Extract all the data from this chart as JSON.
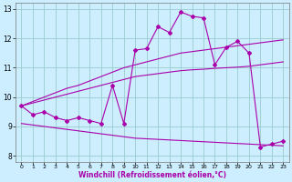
{
  "xlabel": "Windchill (Refroidissement éolien,°C)",
  "xlim": [
    -0.5,
    23.5
  ],
  "ylim": [
    7.8,
    13.2
  ],
  "xticks": [
    0,
    1,
    2,
    3,
    4,
    5,
    6,
    7,
    8,
    9,
    10,
    11,
    12,
    13,
    14,
    15,
    16,
    17,
    18,
    19,
    20,
    21,
    22,
    23
  ],
  "yticks": [
    8,
    9,
    10,
    11,
    12,
    13
  ],
  "bg_color": "#cceeff",
  "line_color": "#aa00aa",
  "grid_color": "#99cccc",
  "curve1_x": [
    0,
    1,
    2,
    3,
    4,
    5,
    6,
    7,
    8,
    9,
    10,
    11,
    12,
    13,
    14,
    15,
    16,
    17,
    18,
    19,
    20,
    21,
    22,
    23
  ],
  "curve1_y": [
    9.7,
    9.4,
    9.5,
    9.3,
    9.2,
    9.3,
    9.2,
    9.1,
    10.4,
    9.1,
    11.6,
    11.65,
    12.4,
    12.2,
    12.9,
    12.75,
    12.7,
    11.1,
    11.7,
    11.9,
    11.5,
    8.3,
    8.4,
    8.5
  ],
  "curve2_x": [
    0,
    1,
    2,
    3,
    4,
    5,
    6,
    7,
    8,
    9,
    10,
    11,
    12,
    13,
    14,
    15,
    16,
    17,
    18,
    19,
    20,
    21,
    22,
    23
  ],
  "curve2_y": [
    9.7,
    9.85,
    10.0,
    10.15,
    10.3,
    10.4,
    10.55,
    10.7,
    10.85,
    11.0,
    11.1,
    11.2,
    11.3,
    11.4,
    11.5,
    11.55,
    11.6,
    11.65,
    11.7,
    11.75,
    11.8,
    11.85,
    11.9,
    11.95
  ],
  "curve3_x": [
    0,
    1,
    2,
    3,
    4,
    5,
    6,
    7,
    8,
    9,
    10,
    11,
    12,
    13,
    14,
    15,
    16,
    17,
    18,
    19,
    20,
    21,
    22,
    23
  ],
  "curve3_y": [
    9.7,
    9.8,
    9.9,
    10.0,
    10.1,
    10.2,
    10.3,
    10.4,
    10.5,
    10.6,
    10.7,
    10.75,
    10.8,
    10.85,
    10.9,
    10.93,
    10.95,
    10.98,
    11.0,
    11.02,
    11.05,
    11.1,
    11.15,
    11.2
  ],
  "curve4_x": [
    0,
    1,
    2,
    3,
    4,
    5,
    6,
    7,
    8,
    9,
    10,
    11,
    12,
    13,
    14,
    15,
    16,
    17,
    18,
    19,
    20,
    21,
    22,
    23
  ],
  "curve4_y": [
    9.1,
    9.05,
    9.0,
    8.95,
    8.9,
    8.85,
    8.8,
    8.75,
    8.7,
    8.65,
    8.6,
    8.58,
    8.56,
    8.54,
    8.52,
    8.5,
    8.48,
    8.46,
    8.44,
    8.42,
    8.4,
    8.38,
    8.36,
    8.34
  ]
}
